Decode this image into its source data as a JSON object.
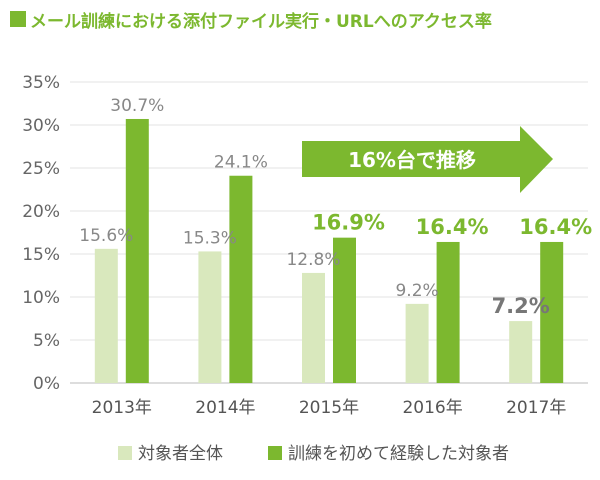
{
  "chart_data": {
    "type": "bar",
    "title": "メール訓練における添付ファイル実行・URLへのアクセス率",
    "categories": [
      "2013年",
      "2014年",
      "2015年",
      "2016年",
      "2017年"
    ],
    "series": [
      {
        "name": "対象者全体",
        "values": [
          15.6,
          15.3,
          12.8,
          9.2,
          7.2
        ],
        "labels": [
          "15.6%",
          "15.3%",
          "12.8%",
          "9.2%",
          "7.2%"
        ],
        "color": "#d9e8bd"
      },
      {
        "name": "訓練を初めて経験した対象者",
        "values": [
          30.7,
          24.1,
          16.9,
          16.4,
          16.4
        ],
        "labels": [
          "30.7%",
          "24.1%",
          "16.9%",
          "16.4%",
          "16.4%"
        ],
        "color": "#7cb82f"
      }
    ],
    "y_ticks": [
      "0%",
      "5%",
      "10%",
      "15%",
      "20%",
      "25%",
      "30%",
      "35%"
    ],
    "ylim": [
      0,
      35
    ],
    "xlabel": "",
    "ylabel": "",
    "grid": true,
    "legend_position": "bottom",
    "annotation": {
      "text": "16%台で推移",
      "color": "#7cb82f"
    },
    "label_colors": {
      "default": "#888888",
      "highlight_green": "#7cb82f",
      "highlight_gray": "#777777"
    }
  }
}
